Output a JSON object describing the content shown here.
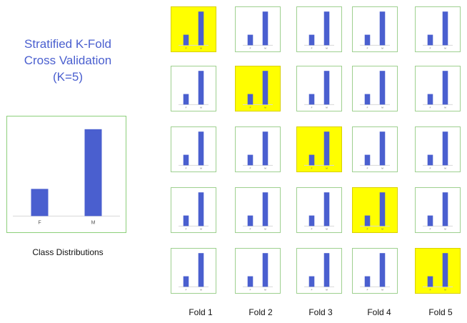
{
  "title": {
    "line1": "Stratified K-Fold",
    "line2": "Cross Validation",
    "line3": "(K=5)"
  },
  "class_distribution_label": "Class Distributions",
  "fold_labels": [
    "Fold 1",
    "Fold 2",
    "Fold 3",
    "Fold 4",
    "Fold 5"
  ],
  "colors": {
    "bar": "#4a5fcf",
    "highlight": "#ffff00",
    "border": "#9ed08f"
  },
  "chart_data": {
    "type": "bar",
    "categories": [
      "F",
      "M"
    ],
    "values": [
      1,
      3.2
    ]
  },
  "grid": {
    "rows": 5,
    "cols": 5,
    "highlighted": [
      [
        0,
        0
      ],
      [
        1,
        1
      ],
      [
        2,
        2
      ],
      [
        3,
        3
      ],
      [
        4,
        4
      ]
    ],
    "mini_categories": [
      "F",
      "M"
    ]
  }
}
